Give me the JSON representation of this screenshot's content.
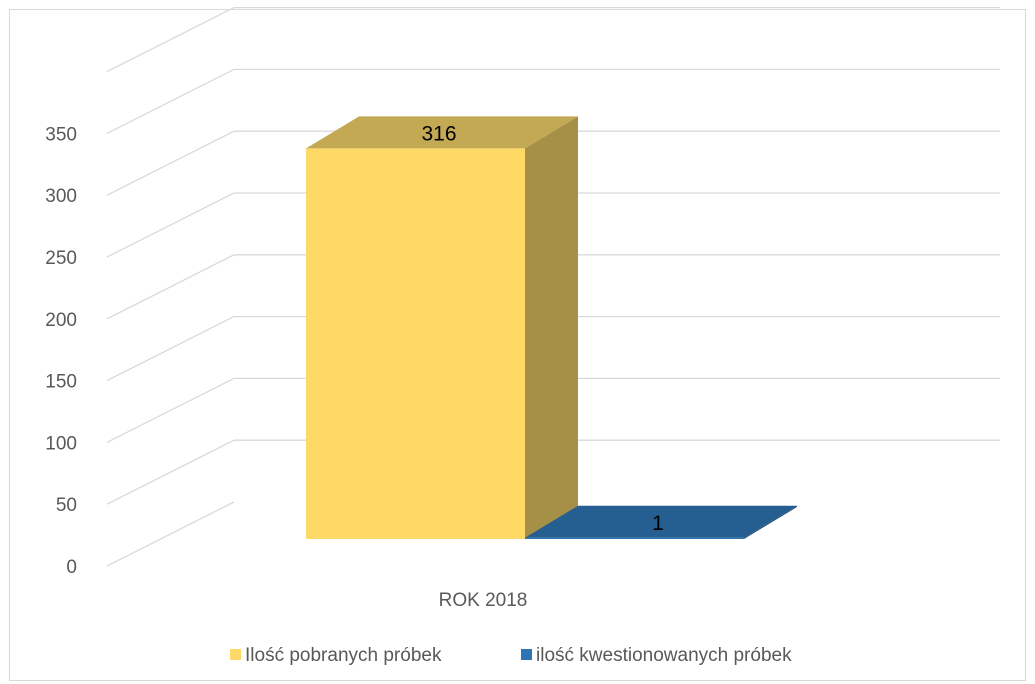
{
  "chart_data": {
    "type": "bar",
    "style": "3d-column",
    "categories": [
      "ROK 2018"
    ],
    "series": [
      {
        "name": "Ilość pobranych próbek",
        "values": [
          316
        ],
        "color": "#FFD966",
        "side_color": "#A68F47",
        "top_color": "#C4A955"
      },
      {
        "name": "ilość kwestionowanych próbek",
        "values": [
          1
        ],
        "color": "#2E75B6",
        "side_color": "#1F4E79",
        "top_color": "#255E91"
      }
    ],
    "title": "",
    "xlabel": "",
    "ylabel": "",
    "ylim": [
      0,
      350
    ],
    "yticks": [
      0,
      50,
      100,
      150,
      200,
      250,
      300,
      350
    ],
    "grid": true,
    "legend": "bottom",
    "data_labels": true
  }
}
